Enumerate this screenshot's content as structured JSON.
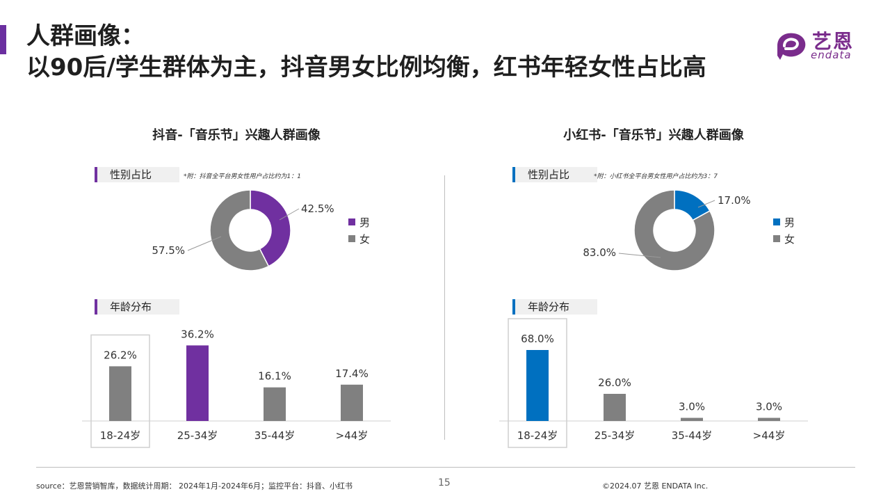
{
  "header": {
    "title_line1": "人群画像：",
    "title_line2": "以90后/学生群体为主，抖音男女比例均衡，红书年轻女性占比高",
    "logo_cn": "艺恩",
    "logo_en": "endata"
  },
  "panels": [
    {
      "title": "抖音-「音乐节」兴趣人群画像",
      "gender_label": "性别占比",
      "note": "*附：抖音全平台男女性用户占比约为1：1",
      "age_label": "年龄分布",
      "legend": [
        "男",
        "女"
      ],
      "accent": "#7030a0"
    },
    {
      "title": "小红书-「音乐节」兴趣人群画像",
      "gender_label": "性别占比",
      "note": "*附：小红书全平台男女性用户占比约为3：7",
      "age_label": "年龄分布",
      "legend": [
        "男",
        "女"
      ],
      "accent": "#0070c0"
    }
  ],
  "chart_data": [
    {
      "type": "pie",
      "donut": true,
      "categories": [
        "男",
        "女"
      ],
      "values": [
        42.5,
        57.5
      ],
      "labels": [
        "42.5%",
        "57.5%"
      ],
      "colors": [
        "#7030a0",
        "#808080"
      ]
    },
    {
      "type": "bar",
      "categories": [
        "18-24岁",
        "25-34岁",
        "35-44岁",
        ">44岁"
      ],
      "values": [
        26.2,
        36.2,
        16.1,
        17.4
      ],
      "labels": [
        "26.2%",
        "36.2%",
        "16.1%",
        "17.4%"
      ],
      "colors": [
        "#808080",
        "#7030a0",
        "#808080",
        "#808080"
      ],
      "highlight_category": "18-24岁"
    },
    {
      "type": "pie",
      "donut": true,
      "categories": [
        "男",
        "女"
      ],
      "values": [
        17.0,
        83.0
      ],
      "labels": [
        "17.0%",
        "83.0%"
      ],
      "colors": [
        "#0070c0",
        "#808080"
      ]
    },
    {
      "type": "bar",
      "categories": [
        "18-24岁",
        "25-34岁",
        "35-44岁",
        ">44岁"
      ],
      "values": [
        68.0,
        26.0,
        3.0,
        3.0
      ],
      "labels": [
        "68.0%",
        "26.0%",
        "3.0%",
        "3.0%"
      ],
      "colors": [
        "#0070c0",
        "#808080",
        "#808080",
        "#808080"
      ],
      "highlight_category": "18-24岁"
    }
  ],
  "footer": {
    "source": "source：艺恩营销智库，数据统计周期： 2024年1月-2024年6月；监控平台：抖音、小红书",
    "page": "15",
    "copyright": "©2024.07 艺恩 ENDATA Inc."
  }
}
